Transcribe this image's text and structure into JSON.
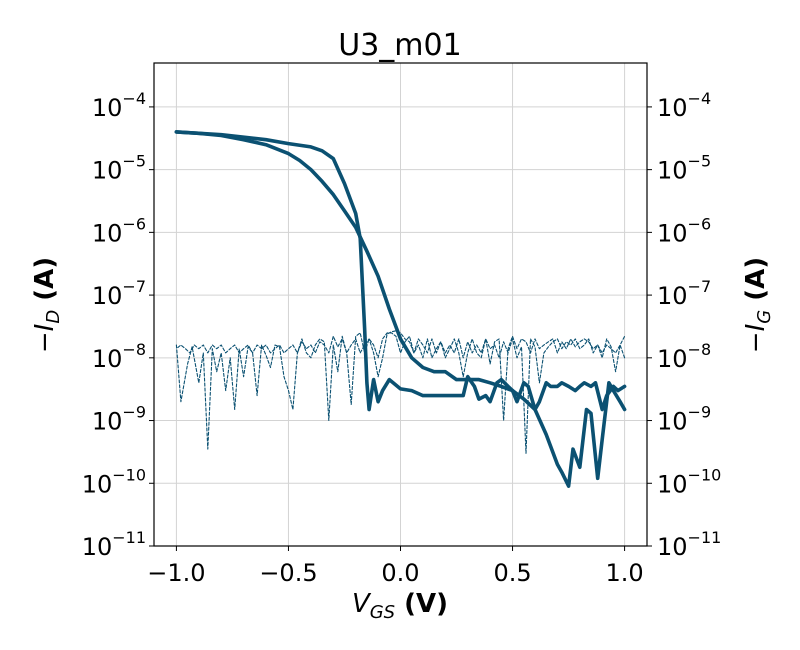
{
  "chart_data": {
    "type": "line",
    "title": "U3_m01",
    "xlabel": {
      "sym": "V",
      "sub": "GS",
      "unit": " (V)"
    },
    "ylabel_left": {
      "pre": "−",
      "sym": "I",
      "sub": "D",
      "unit": " (A)"
    },
    "ylabel_right": {
      "pre": "−",
      "sym": "I",
      "sub": "G",
      "unit": " (A)"
    },
    "xlim": [
      -1.1,
      1.1
    ],
    "ylim_log10": [
      -11,
      -3.3
    ],
    "y_scale": "log",
    "grid": true,
    "color": "#0b5172",
    "x_ticks": [
      {
        "value": -1.0,
        "label": "−1.0"
      },
      {
        "value": -0.5,
        "label": "−0.5"
      },
      {
        "value": 0.0,
        "label": "0.0"
      },
      {
        "value": 0.5,
        "label": "0.5"
      },
      {
        "value": 1.0,
        "label": "1.0"
      }
    ],
    "y_ticks": [
      {
        "exp": -4,
        "base": "10",
        "sup": "−4"
      },
      {
        "exp": -5,
        "base": "10",
        "sup": "−5"
      },
      {
        "exp": -6,
        "base": "10",
        "sup": "−6"
      },
      {
        "exp": -7,
        "base": "10",
        "sup": "−7"
      },
      {
        "exp": -8,
        "base": "10",
        "sup": "−8"
      },
      {
        "exp": -9,
        "base": "10",
        "sup": "−9"
      },
      {
        "exp": -10,
        "base": "10",
        "sup": "−10"
      },
      {
        "exp": -11,
        "base": "10",
        "sup": "−11"
      }
    ],
    "series": [
      {
        "kind": "drain-forward",
        "style": "solid",
        "x": [
          -1.0,
          -0.9,
          -0.8,
          -0.7,
          -0.6,
          -0.5,
          -0.45,
          -0.4,
          -0.35,
          -0.3,
          -0.25,
          -0.2,
          -0.15,
          -0.1,
          -0.05,
          0.0,
          0.05,
          0.1,
          0.15,
          0.2,
          0.25,
          0.3,
          0.35,
          0.4,
          0.45,
          0.5,
          0.55,
          0.6,
          0.65,
          0.7,
          0.72,
          0.75,
          0.77,
          0.8,
          0.83,
          0.85,
          0.88,
          0.9,
          0.93,
          0.95,
          0.98,
          1.0
        ],
        "y": [
          4e-05,
          3.8e-05,
          3.5e-05,
          3e-05,
          2.5e-05,
          1.8e-05,
          1.4e-05,
          1e-05,
          6.5e-06,
          4e-06,
          2.2e-06,
          1.2e-06,
          5e-07,
          2e-07,
          6e-08,
          2e-08,
          1e-08,
          7e-09,
          6e-09,
          6e-09,
          4.5e-09,
          4.5e-09,
          4.5e-09,
          4e-09,
          3.5e-09,
          3e-09,
          2.2e-09,
          1.5e-09,
          6e-10,
          2e-10,
          1.5e-10,
          9e-11,
          3.5e-10,
          1.8e-10,
          1.5e-09,
          1.3e-09,
          1.2e-10,
          5e-10,
          4e-09,
          3e-09,
          2e-09,
          1.5e-09
        ]
      },
      {
        "kind": "drain-reverse",
        "style": "solid",
        "x": [
          1.0,
          0.97,
          0.95,
          0.92,
          0.9,
          0.87,
          0.85,
          0.82,
          0.8,
          0.78,
          0.75,
          0.72,
          0.7,
          0.67,
          0.65,
          0.62,
          0.6,
          0.57,
          0.55,
          0.52,
          0.5,
          0.48,
          0.45,
          0.43,
          0.4,
          0.38,
          0.35,
          0.33,
          0.3,
          0.28,
          0.25,
          0.2,
          0.15,
          0.1,
          0.05,
          0.0,
          -0.05,
          -0.08,
          -0.1,
          -0.12,
          -0.14,
          -0.15,
          -0.16,
          -0.18,
          -0.2,
          -0.25,
          -0.3,
          -0.35,
          -0.4,
          -0.5,
          -0.6,
          -0.8,
          -1.0
        ],
        "y": [
          3.5e-09,
          3e-09,
          3.5e-09,
          2.5e-09,
          1.5e-09,
          4e-09,
          3.5e-09,
          4e-09,
          3.5e-09,
          3e-09,
          3.5e-09,
          4e-09,
          3.5e-09,
          3.5e-09,
          4e-09,
          2e-09,
          1.5e-09,
          3.5e-09,
          4e-09,
          2e-09,
          3e-09,
          3.5e-09,
          4.5e-09,
          4e-09,
          2e-09,
          2.5e-09,
          2.2e-09,
          3.5e-09,
          5e-09,
          2.5e-09,
          2.5e-09,
          2.5e-09,
          2.5e-09,
          2.5e-09,
          3e-09,
          3.2e-09,
          4.5e-09,
          3e-09,
          2e-09,
          4.5e-09,
          1.5e-09,
          4e-09,
          3e-08,
          8e-07,
          2e-06,
          6e-06,
          1.5e-05,
          2e-05,
          2.3e-05,
          2.6e-05,
          3e-05,
          3.6e-05,
          4e-05
        ]
      },
      {
        "kind": "gate-forward",
        "style": "dashed",
        "x": [
          -1.0,
          -0.98,
          -0.95,
          -0.93,
          -0.9,
          -0.88,
          -0.86,
          -0.84,
          -0.82,
          -0.8,
          -0.78,
          -0.76,
          -0.74,
          -0.72,
          -0.7,
          -0.68,
          -0.66,
          -0.64,
          -0.62,
          -0.6,
          -0.58,
          -0.56,
          -0.54,
          -0.52,
          -0.5,
          -0.48,
          -0.46,
          -0.44,
          -0.42,
          -0.4,
          -0.38,
          -0.36,
          -0.34,
          -0.32,
          -0.3,
          -0.28,
          -0.26,
          -0.24,
          -0.22,
          -0.2,
          -0.18,
          -0.16,
          -0.14,
          -0.12,
          -0.1,
          -0.08,
          -0.06,
          -0.04,
          -0.02,
          0.0,
          0.02,
          0.04,
          0.06,
          0.08,
          0.1,
          0.12,
          0.14,
          0.16,
          0.18,
          0.2,
          0.22,
          0.24,
          0.26,
          0.28,
          0.3,
          0.32,
          0.34,
          0.36,
          0.38,
          0.4,
          0.42,
          0.44,
          0.46,
          0.48,
          0.5,
          0.52,
          0.54,
          0.56,
          0.58,
          0.6,
          0.62,
          0.64,
          0.66,
          0.68,
          0.7,
          0.72,
          0.74,
          0.76,
          0.78,
          0.8,
          0.82,
          0.84,
          0.86,
          0.88,
          0.9,
          0.92,
          0.94,
          0.96,
          0.98,
          1.0
        ],
        "y": [
          1.6e-08,
          2e-09,
          8e-09,
          1.5e-08,
          4e-09,
          1.2e-08,
          3.5e-10,
          1.4e-08,
          6e-09,
          1.2e-08,
          3e-09,
          1e-08,
          1.5e-09,
          1.4e-08,
          5e-09,
          1.5e-08,
          1.2e-08,
          2.5e-09,
          1.6e-08,
          1.1e-08,
          7e-09,
          1.6e-08,
          1.5e-08,
          5e-09,
          3e-09,
          1.5e-09,
          1.2e-08,
          2e-08,
          1.2e-08,
          1e-08,
          1.6e-08,
          2e-08,
          1.8e-08,
          1e-09,
          1.6e-08,
          6e-09,
          2.2e-08,
          1.2e-08,
          1.8e-09,
          2.2e-08,
          2.5e-08,
          1.2e-08,
          2e-08,
          1.6e-08,
          1e-08,
          2e-08,
          2.5e-08,
          2.5e-08,
          2.2e-08,
          1.2e-08,
          1.8e-08,
          2.2e-08,
          1.2e-08,
          2e-08,
          1.6e-08,
          1.2e-08,
          2e-08,
          1.2e-08,
          1.8e-08,
          1e-08,
          1.4e-08,
          2e-08,
          1.2e-08,
          5e-09,
          1.2e-08,
          2e-08,
          1.2e-08,
          1e-08,
          2e-08,
          8e-09,
          1.8e-08,
          2e-08,
          1e-09,
          1.4e-08,
          2.2e-08,
          1.4e-08,
          2e-08,
          1.8e-08,
          1.2e-08,
          2e-08,
          1.4e-08,
          1.6e-08,
          1.8e-08,
          2e-08,
          1.2e-08,
          1.8e-08,
          1.4e-08,
          2e-08,
          1.5e-08,
          1.8e-08,
          2e-08,
          1.8e-08,
          1.4e-08,
          1.6e-08,
          1.2e-08,
          1.6e-08,
          1.4e-08,
          1.2e-08,
          1.6e-08,
          2.2e-08
        ]
      },
      {
        "kind": "gate-reverse",
        "style": "dashed",
        "x": [
          1.0,
          0.98,
          0.96,
          0.94,
          0.92,
          0.9,
          0.88,
          0.86,
          0.84,
          0.82,
          0.8,
          0.78,
          0.76,
          0.74,
          0.72,
          0.7,
          0.68,
          0.66,
          0.64,
          0.62,
          0.6,
          0.58,
          0.56,
          0.54,
          0.52,
          0.5,
          0.48,
          0.46,
          0.44,
          0.42,
          0.4,
          0.38,
          0.36,
          0.34,
          0.32,
          0.3,
          0.28,
          0.26,
          0.24,
          0.22,
          0.2,
          0.18,
          0.16,
          0.14,
          0.12,
          0.1,
          0.08,
          0.06,
          0.04,
          0.02,
          0.0,
          -0.02,
          -0.04,
          -0.06,
          -0.08,
          -0.1,
          -0.12,
          -0.14,
          -0.16,
          -0.18,
          -0.2,
          -0.22,
          -0.24,
          -0.26,
          -0.28,
          -0.3,
          -0.32,
          -0.34,
          -0.36,
          -0.38,
          -0.4,
          -0.42,
          -0.44,
          -0.46,
          -0.48,
          -0.5,
          -0.52,
          -0.54,
          -0.56,
          -0.58,
          -0.6,
          -0.62,
          -0.64,
          -0.66,
          -0.68,
          -0.7,
          -0.72,
          -0.74,
          -0.76,
          -0.78,
          -0.8,
          -0.82,
          -0.84,
          -0.86,
          -0.88,
          -0.9,
          -0.92,
          -0.94,
          -0.96,
          -0.98,
          -1.0
        ],
        "y": [
          1e-08,
          1.6e-08,
          6e-09,
          1.5e-08,
          2e-08,
          1e-08,
          1.6e-08,
          1.2e-08,
          2e-08,
          1.6e-08,
          1.4e-08,
          2e-08,
          1.6e-08,
          1.8e-08,
          1.4e-08,
          2e-08,
          1.8e-08,
          1.5e-08,
          1.2e-08,
          4e-09,
          1.5e-08,
          2e-08,
          3e-10,
          1.5e-08,
          1e-08,
          2e-08,
          1.2e-08,
          1.8e-08,
          1e-08,
          1.6e-08,
          1.4e-08,
          2e-08,
          1.2e-08,
          1.6e-08,
          1.2e-08,
          1.8e-08,
          1e-08,
          2e-08,
          1.2e-08,
          1.6e-08,
          1.2e-08,
          1.8e-08,
          1.4e-08,
          1e-08,
          2e-08,
          1e-08,
          1.6e-08,
          1.2e-08,
          1.8e-08,
          2e-08,
          2.5e-08,
          2.7e-08,
          2.6e-08,
          2.4e-08,
          1e-08,
          5e-09,
          1.2e-08,
          2e-08,
          1.6e-08,
          1.2e-08,
          2e-08,
          1.6e-08,
          1.2e-08,
          2e-08,
          1.5e-08,
          2.2e-08,
          1.2e-08,
          1.6e-08,
          1.8e-08,
          1.2e-08,
          1.6e-08,
          1.4e-08,
          1.8e-08,
          1.2e-08,
          1.6e-08,
          1.4e-08,
          1.2e-08,
          1.6e-08,
          1.4e-08,
          1.2e-08,
          1.6e-08,
          1.4e-08,
          1.6e-08,
          1.2e-08,
          1.6e-08,
          1.4e-08,
          1.2e-08,
          1.6e-08,
          1.4e-08,
          1.2e-08,
          1.6e-08,
          1.4e-08,
          1.6e-08,
          1.2e-08,
          1.6e-08,
          1.4e-08,
          1.6e-08,
          1.2e-08,
          1.4e-08,
          1.6e-08,
          1.4e-08
        ]
      }
    ]
  }
}
